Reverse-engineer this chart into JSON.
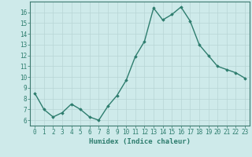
{
  "x": [
    0,
    1,
    2,
    3,
    4,
    5,
    6,
    7,
    8,
    9,
    10,
    11,
    12,
    13,
    14,
    15,
    16,
    17,
    18,
    19,
    20,
    21,
    22,
    23
  ],
  "y": [
    8.5,
    7.0,
    6.3,
    6.7,
    7.5,
    7.0,
    6.3,
    6.0,
    7.3,
    8.3,
    9.7,
    11.9,
    13.3,
    16.4,
    15.3,
    15.8,
    16.5,
    15.2,
    13.0,
    12.0,
    11.0,
    10.7,
    10.4,
    9.9
  ],
  "line_color": "#2e7d6e",
  "marker": "D",
  "marker_size": 1.8,
  "line_width": 1.0,
  "xlabel": "Humidex (Indice chaleur)",
  "xlim": [
    -0.5,
    23.5
  ],
  "ylim": [
    5.5,
    17.0
  ],
  "xticks": [
    0,
    1,
    2,
    3,
    4,
    5,
    6,
    7,
    8,
    9,
    10,
    11,
    12,
    13,
    14,
    15,
    16,
    17,
    18,
    19,
    20,
    21,
    22,
    23
  ],
  "yticks": [
    6,
    7,
    8,
    9,
    10,
    11,
    12,
    13,
    14,
    15,
    16
  ],
  "bg_color": "#ceeaea",
  "grid_color": "#b8d5d5",
  "axes_color": "#3d7a70",
  "tick_color": "#2e7d6e",
  "xlabel_fontsize": 6.5,
  "tick_fontsize": 5.5
}
